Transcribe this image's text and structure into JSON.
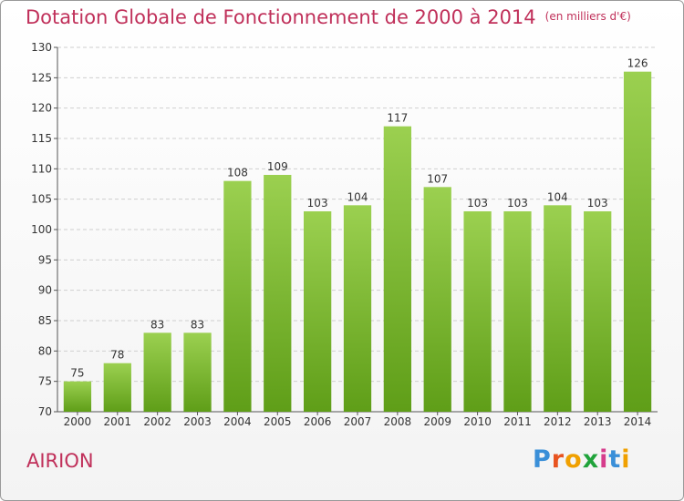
{
  "header": {
    "title": "Dotation Globale de Fonctionnement de 2000 à 2014",
    "unit": "(en milliers d'€)"
  },
  "commune": "AIRION",
  "logo": {
    "text": "Proxiti",
    "letter_colors": [
      "#3a8fd8",
      "#e8531f",
      "#f0a000",
      "#1fa33a",
      "#d63c8c",
      "#3a8fd8",
      "#f0a000"
    ]
  },
  "chart_data": {
    "type": "bar",
    "categories": [
      "2000",
      "2001",
      "2002",
      "2003",
      "2004",
      "2005",
      "2006",
      "2007",
      "2008",
      "2009",
      "2010",
      "2011",
      "2012",
      "2013",
      "2014"
    ],
    "values": [
      75,
      78,
      83,
      83,
      108,
      109,
      103,
      104,
      117,
      107,
      103,
      103,
      104,
      103,
      126
    ],
    "ylim": [
      70,
      130
    ],
    "yticks": [
      70,
      75,
      80,
      85,
      90,
      95,
      100,
      105,
      110,
      115,
      120,
      125,
      130
    ],
    "grid": "horizontal dashed",
    "bar_color": "#7cba2f",
    "data_labels": true
  }
}
